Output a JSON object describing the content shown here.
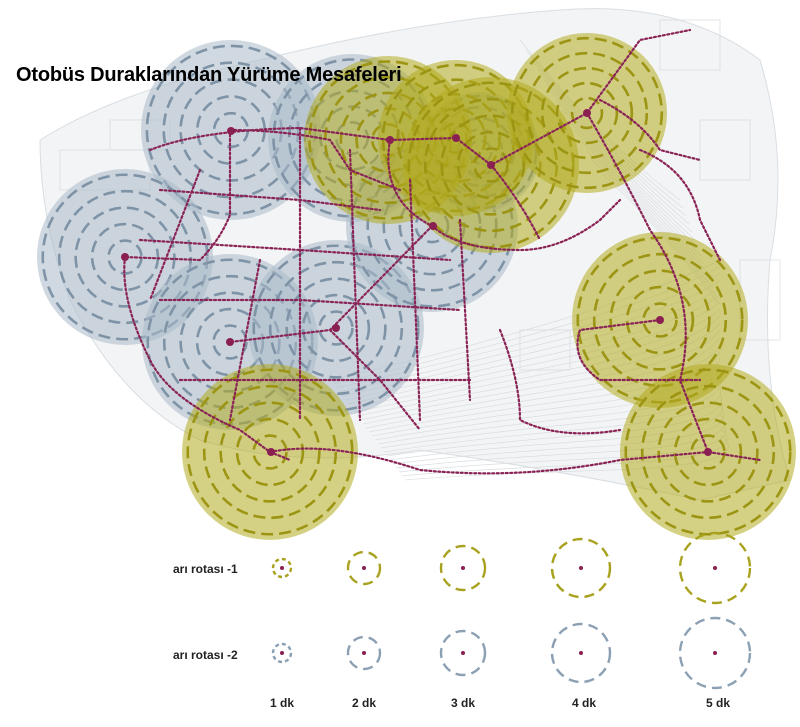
{
  "title": "Otobüs Duraklarından Yürüme Mesafeleri",
  "legend": {
    "routes": [
      {
        "label": "arı rotası -1",
        "color": "#a9a21f"
      },
      {
        "label": "arı rotası -2",
        "color": "#8ca0b4"
      }
    ],
    "minutes": [
      "1 dk",
      "2 dk",
      "3 dk",
      "4 dk",
      "5 dk"
    ]
  },
  "colors": {
    "route_line": "#8a2456",
    "stop": "#8a1f52",
    "route1_fill": "#b3ac1f",
    "route1_ring": "#9c9513",
    "route2_fill": "#a9bac8",
    "route2_ring": "#7f93a7",
    "basemap": "#d9dee2"
  }
}
